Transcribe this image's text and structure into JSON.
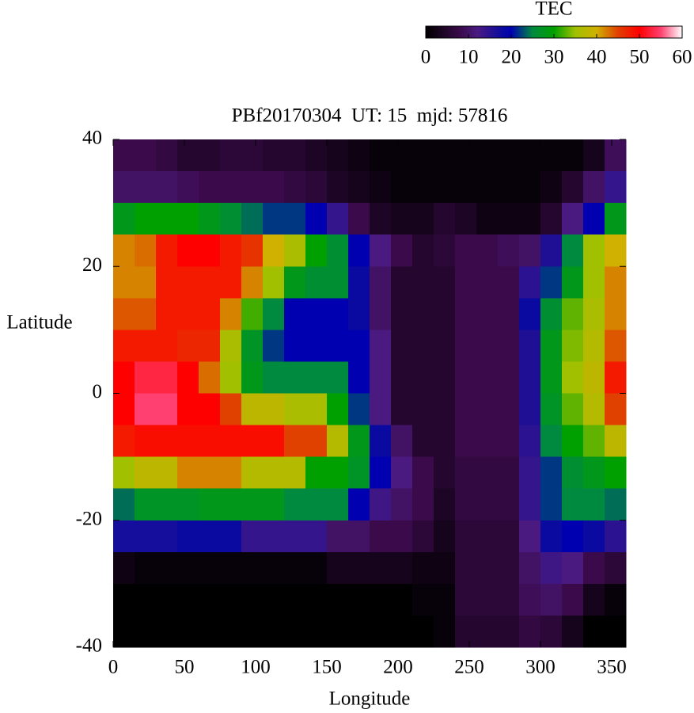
{
  "chart_data": {
    "type": "heatmap",
    "title": "PBf20170304  UT: 15  mjd: 57816",
    "x_label": "Longitude",
    "y_label": "Latitude",
    "colorbar_label": "TEC",
    "xlim": [
      0,
      360
    ],
    "xticks": [
      0,
      50,
      100,
      150,
      200,
      250,
      300,
      350
    ],
    "ylim": [
      -40,
      40
    ],
    "yticks": [
      -40,
      -20,
      0,
      20,
      40
    ],
    "clim": [
      0,
      60
    ],
    "cticks": [
      0,
      10,
      20,
      30,
      40,
      50,
      60
    ],
    "colorscale": [
      [
        0,
        "#000000"
      ],
      [
        8,
        "#3a0a4a"
      ],
      [
        12,
        "#4a1a80"
      ],
      [
        18,
        "#0a0aa0"
      ],
      [
        20,
        "#0000b0"
      ],
      [
        25,
        "#008a40"
      ],
      [
        30,
        "#00a000"
      ],
      [
        35,
        "#a0c000"
      ],
      [
        40,
        "#d0b000"
      ],
      [
        45,
        "#e04000"
      ],
      [
        50,
        "#ff0000"
      ],
      [
        55,
        "#ff4070"
      ],
      [
        60,
        "#ffffff"
      ]
    ],
    "xbins": [
      0,
      15,
      30,
      45,
      60,
      75,
      90,
      105,
      120,
      135,
      150,
      165,
      180,
      195,
      210,
      225,
      240,
      255,
      270,
      285,
      300,
      315,
      330,
      345,
      360
    ],
    "ybins": [
      40,
      35,
      30,
      25,
      20,
      15,
      10,
      5,
      0,
      -5,
      -10,
      -15,
      -20,
      -25,
      -30,
      -35,
      -40
    ],
    "z": [
      [
        8,
        8,
        7,
        5,
        5,
        6,
        6,
        5,
        5,
        4,
        3,
        2,
        1,
        1,
        1,
        1,
        1,
        1,
        1,
        1,
        1,
        1,
        3,
        9
      ],
      [
        10,
        10,
        10,
        9,
        8,
        8,
        8,
        8,
        7,
        6,
        4,
        3,
        2,
        1,
        1,
        1,
        1,
        1,
        1,
        1,
        2,
        5,
        10,
        14
      ],
      [
        28,
        30,
        30,
        30,
        28,
        26,
        24,
        22,
        22,
        20,
        14,
        8,
        4,
        3,
        3,
        5,
        4,
        2,
        2,
        2,
        5,
        12,
        20,
        28
      ],
      [
        42,
        43,
        48,
        50,
        50,
        48,
        46,
        40,
        36,
        30,
        26,
        20,
        12,
        8,
        5,
        6,
        8,
        8,
        9,
        10,
        16,
        25,
        35,
        40
      ],
      [
        42,
        42,
        48,
        48,
        48,
        48,
        42,
        35,
        28,
        26,
        26,
        18,
        10,
        5,
        5,
        5,
        8,
        8,
        8,
        15,
        22,
        28,
        35,
        42
      ],
      [
        44,
        44,
        48,
        48,
        48,
        42,
        32,
        25,
        20,
        20,
        20,
        18,
        10,
        5,
        5,
        5,
        8,
        8,
        8,
        18,
        26,
        33,
        36,
        42
      ],
      [
        48,
        48,
        48,
        47,
        47,
        36,
        27,
        22,
        20,
        20,
        20,
        20,
        12,
        5,
        5,
        5,
        8,
        8,
        8,
        16,
        28,
        34,
        37,
        44
      ],
      [
        50,
        53,
        53,
        50,
        43,
        35,
        28,
        25,
        25,
        25,
        25,
        20,
        12,
        5,
        5,
        5,
        8,
        8,
        8,
        16,
        28,
        35,
        38,
        48
      ],
      [
        50,
        55,
        55,
        50,
        50,
        45,
        38,
        38,
        36,
        36,
        30,
        22,
        12,
        5,
        5,
        5,
        8,
        8,
        8,
        16,
        27,
        33,
        37,
        45
      ],
      [
        48,
        49,
        49,
        49,
        49,
        49,
        49,
        49,
        45,
        45,
        37,
        28,
        18,
        10,
        5,
        5,
        8,
        8,
        8,
        15,
        25,
        30,
        33,
        38
      ],
      [
        35,
        38,
        38,
        42,
        42,
        42,
        37,
        37,
        37,
        30,
        30,
        27,
        20,
        12,
        8,
        5,
        7,
        7,
        7,
        14,
        22,
        26,
        28,
        30
      ],
      [
        24,
        27,
        27,
        27,
        28,
        28,
        28,
        28,
        25,
        25,
        25,
        20,
        13,
        10,
        8,
        4,
        7,
        7,
        7,
        14,
        22,
        25,
        25,
        24
      ],
      [
        17,
        17,
        17,
        18,
        18,
        18,
        14,
        14,
        14,
        14,
        10,
        10,
        8,
        8,
        6,
        3,
        6,
        6,
        6,
        12,
        18,
        20,
        18,
        15
      ],
      [
        2,
        1,
        1,
        1,
        1,
        1,
        1,
        1,
        1,
        1,
        3,
        3,
        3,
        3,
        2,
        2,
        6,
        6,
        6,
        10,
        13,
        12,
        8,
        6
      ],
      [
        0,
        0,
        0,
        0,
        0,
        0,
        0,
        0,
        0,
        0,
        0,
        0,
        0,
        0,
        1,
        1,
        6,
        6,
        6,
        9,
        10,
        8,
        3,
        1
      ],
      [
        0,
        0,
        0,
        0,
        0,
        0,
        0,
        0,
        0,
        0,
        0,
        0,
        0,
        0,
        0,
        1,
        5,
        5,
        5,
        7,
        6,
        3,
        0,
        0
      ]
    ]
  }
}
